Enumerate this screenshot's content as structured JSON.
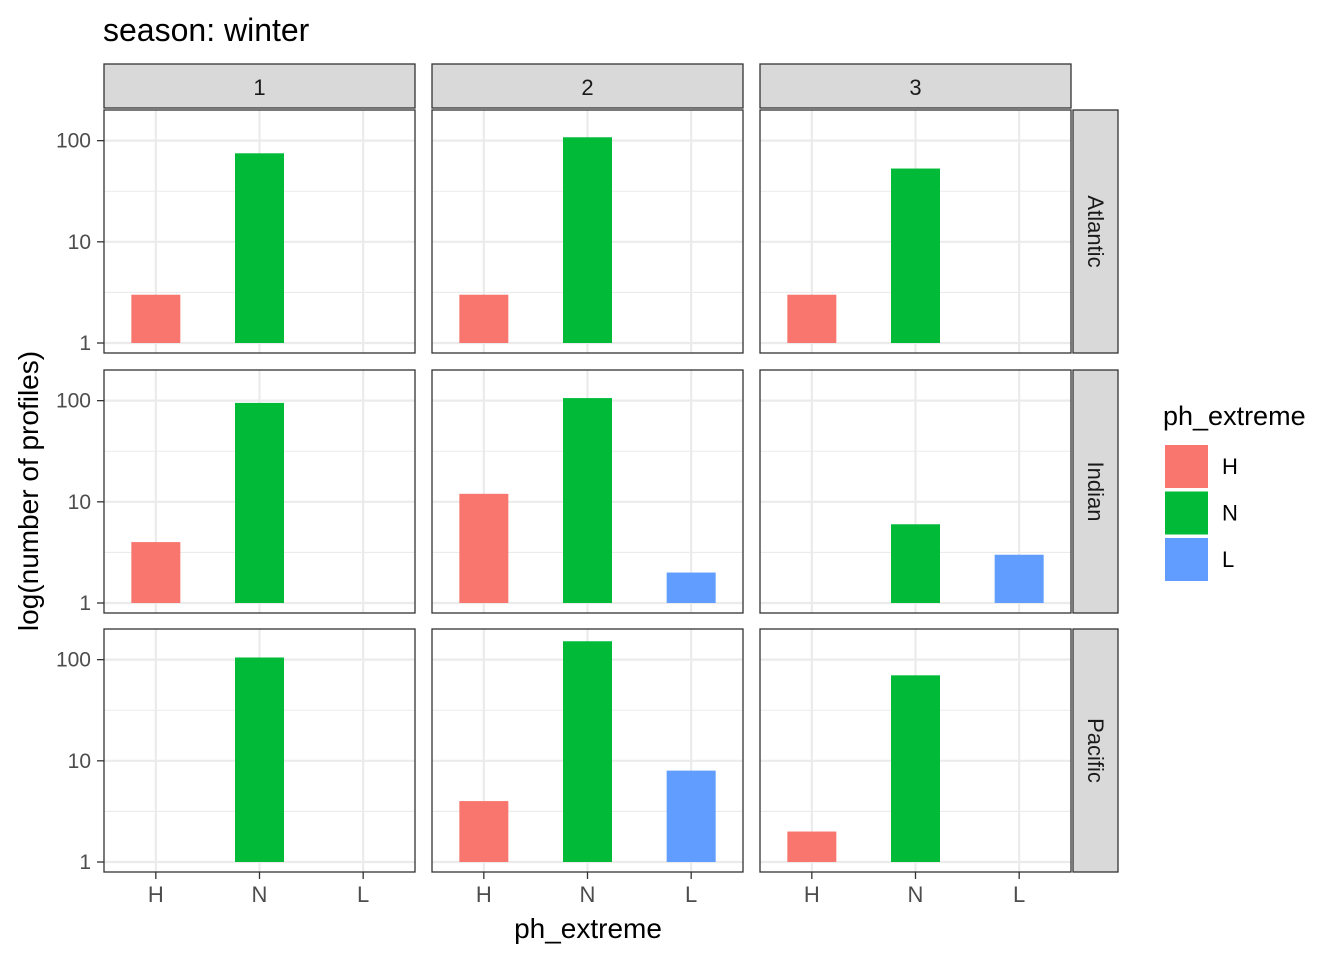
{
  "chart_data": {
    "type": "bar",
    "title": "season: winter",
    "xlabel": "ph_extreme",
    "ylabel": "log(number of profiles)",
    "y_scale": "log10",
    "ylim": [
      1,
      160
    ],
    "y_ticks": [
      {
        "value": 1,
        "label": "1"
      },
      {
        "value": 10,
        "label": "10"
      },
      {
        "value": 100,
        "label": "100"
      }
    ],
    "categories": [
      "H",
      "N",
      "L"
    ],
    "legend": {
      "title": "ph_extreme",
      "position": "right",
      "entries": [
        {
          "label": "H",
          "color": "#F8766D"
        },
        {
          "label": "N",
          "color": "#00BA38"
        },
        {
          "label": "L",
          "color": "#619CFF"
        }
      ]
    },
    "facet_columns": [
      "1",
      "2",
      "3"
    ],
    "facet_rows": [
      "Atlantic",
      "Indian",
      "Pacific"
    ],
    "grid": true,
    "panels": [
      {
        "row": "Atlantic",
        "col": "1",
        "values": {
          "H": 3,
          "N": 75
        }
      },
      {
        "row": "Atlantic",
        "col": "2",
        "values": {
          "H": 3,
          "N": 108
        }
      },
      {
        "row": "Atlantic",
        "col": "3",
        "values": {
          "H": 3,
          "N": 53
        }
      },
      {
        "row": "Indian",
        "col": "1",
        "values": {
          "H": 4,
          "N": 95
        }
      },
      {
        "row": "Indian",
        "col": "2",
        "values": {
          "H": 12,
          "N": 106,
          "L": 2
        }
      },
      {
        "row": "Indian",
        "col": "3",
        "values": {
          "N": 6,
          "L": 3
        }
      },
      {
        "row": "Pacific",
        "col": "1",
        "values": {
          "N": 105
        }
      },
      {
        "row": "Pacific",
        "col": "2",
        "values": {
          "H": 4,
          "N": 152,
          "L": 8
        }
      },
      {
        "row": "Pacific",
        "col": "3",
        "values": {
          "H": 2,
          "N": 70
        }
      }
    ]
  }
}
